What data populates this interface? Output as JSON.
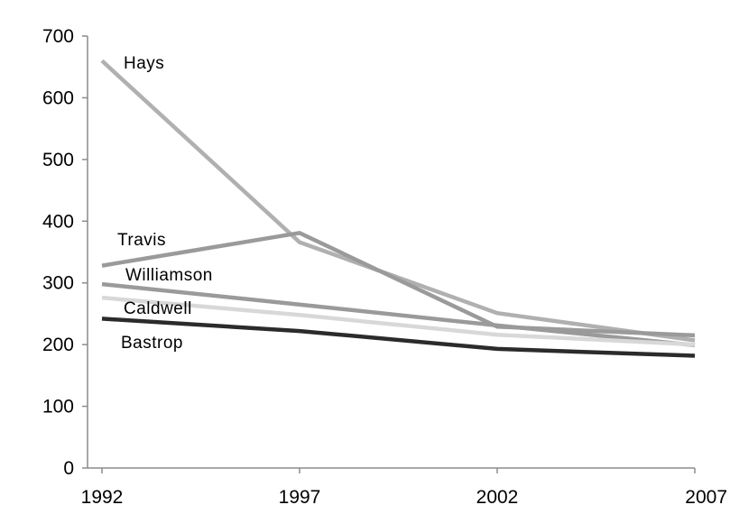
{
  "chart_data": {
    "type": "line",
    "x": [
      "1992",
      "1997",
      "2002",
      "2007"
    ],
    "ylim": [
      0,
      700
    ],
    "yticks": [
      "0",
      "100",
      "200",
      "300",
      "400",
      "500",
      "600",
      "700"
    ],
    "grid": false,
    "legend": "inline labels at left end of each line",
    "series": [
      {
        "name": "Hays",
        "values": [
          660,
          366,
          251,
          207
        ],
        "color": "#b0b0b0"
      },
      {
        "name": "Travis",
        "values": [
          328,
          381,
          229,
          215
        ],
        "color": "#9a9a9a"
      },
      {
        "name": "Williamson",
        "values": [
          298,
          265,
          231,
          199
        ],
        "color": "#9a9a9a"
      },
      {
        "name": "Caldwell",
        "values": [
          276,
          248,
          216,
          200
        ],
        "color": "#d8d8d8"
      },
      {
        "name": "Bastrop",
        "values": [
          242,
          222,
          193,
          182
        ],
        "color": "#2b2b2b"
      }
    ]
  }
}
